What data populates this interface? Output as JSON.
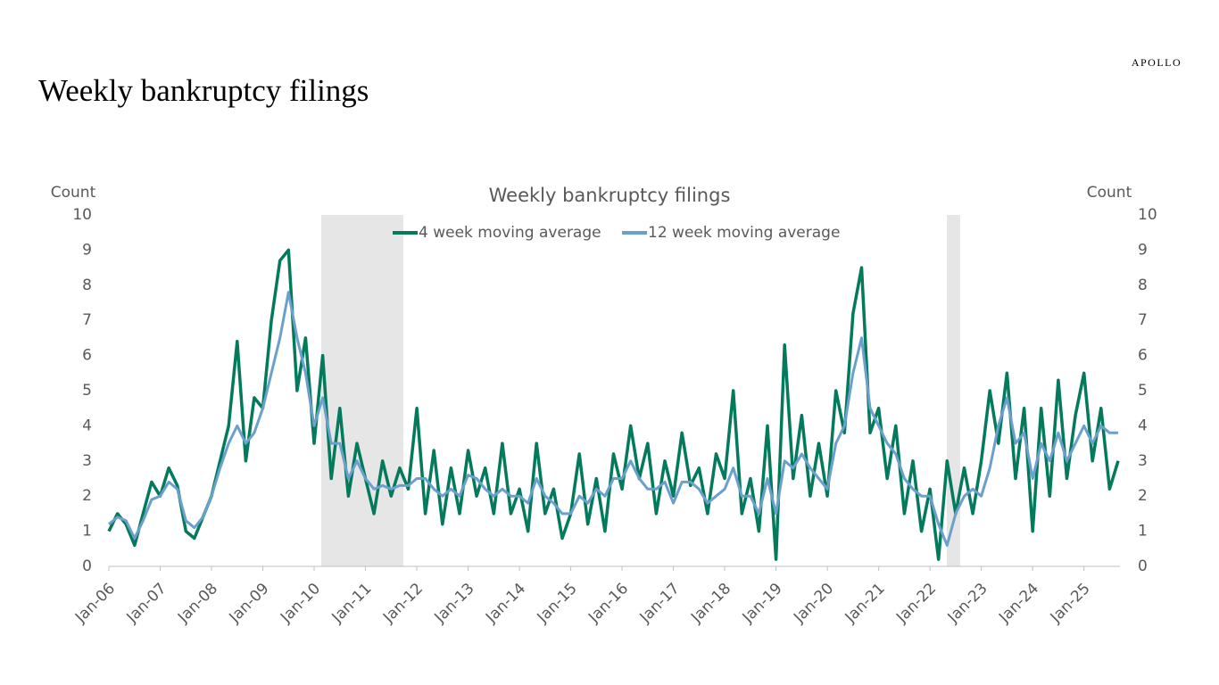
{
  "slide_title": "Weekly bankruptcy filings",
  "brand": "APOLLO",
  "chart_data": {
    "type": "line",
    "title": "Weekly bankruptcy filings",
    "y_label": "Count",
    "y2_label": "Count",
    "categories": [
      "Jan-06",
      null,
      null,
      null,
      null,
      null,
      "Jan-07",
      null,
      null,
      null,
      null,
      null,
      "Jan-08",
      null,
      null,
      null,
      null,
      null,
      "Jan-09",
      null,
      null,
      null,
      null,
      null,
      "Jan-10",
      null,
      null,
      null,
      null,
      null,
      "Jan-11",
      null,
      null,
      null,
      null,
      null,
      "Jan-12",
      null,
      null,
      null,
      null,
      null,
      "Jan-13",
      null,
      null,
      null,
      null,
      null,
      "Jan-14",
      null,
      null,
      null,
      null,
      null,
      "Jan-15",
      null,
      null,
      null,
      null,
      null,
      "Jan-16",
      null,
      null,
      null,
      null,
      null,
      "Jan-17",
      null,
      null,
      null,
      null,
      null,
      "Jan-18",
      null,
      null,
      null,
      null,
      null,
      "Jan-19",
      null,
      null,
      null,
      null,
      null,
      "Jan-20",
      null,
      null,
      null,
      null,
      null,
      "Jan-21",
      null,
      null,
      null,
      null,
      null,
      "Jan-22",
      null,
      null,
      null,
      null,
      null,
      "Jan-23",
      null,
      null,
      null,
      null,
      null,
      "Jan-24",
      null,
      null,
      null,
      null,
      null,
      "Jan-25",
      null,
      null,
      null,
      null
    ],
    "series": [
      {
        "name": "4 week moving average",
        "color": "#037a5c",
        "values": [
          1.0,
          1.5,
          1.2,
          0.6,
          1.5,
          2.4,
          2.0,
          2.8,
          2.3,
          1.0,
          0.8,
          1.4,
          2.0,
          3.0,
          4.0,
          6.4,
          3.0,
          4.8,
          4.5,
          7.0,
          8.7,
          9.0,
          5.0,
          6.5,
          3.5,
          6.0,
          2.5,
          4.5,
          2.0,
          3.5,
          2.5,
          1.5,
          3.0,
          2.0,
          2.8,
          2.2,
          4.5,
          1.5,
          3.3,
          1.2,
          2.8,
          1.5,
          3.3,
          2.0,
          2.8,
          1.5,
          3.5,
          1.5,
          2.2,
          1.0,
          3.5,
          1.5,
          2.2,
          0.8,
          1.5,
          3.2,
          1.2,
          2.5,
          1.0,
          3.2,
          2.2,
          4.0,
          2.5,
          3.5,
          1.5,
          3.0,
          2.0,
          3.8,
          2.3,
          2.8,
          1.5,
          3.2,
          2.5,
          5.0,
          1.5,
          2.5,
          1.0,
          4.0,
          0.2,
          6.3,
          2.5,
          4.3,
          2.0,
          3.5,
          2.0,
          5.0,
          3.8,
          7.2,
          8.5,
          3.8,
          4.5,
          2.5,
          4.0,
          1.5,
          3.0,
          1.0,
          2.2,
          0.2,
          3.0,
          1.5,
          2.8,
          1.5,
          3.0,
          5.0,
          3.5,
          5.5,
          2.5,
          4.5,
          1.0,
          4.5,
          2.0,
          5.3,
          2.5,
          4.3,
          5.5,
          3.0,
          4.5,
          2.2,
          3.0
        ]
      },
      {
        "name": "12 week moving average",
        "color": "#6b9fcc",
        "values": [
          1.2,
          1.4,
          1.3,
          0.8,
          1.3,
          1.9,
          2.0,
          2.4,
          2.2,
          1.3,
          1.1,
          1.4,
          2.0,
          2.8,
          3.5,
          4.0,
          3.5,
          3.8,
          4.5,
          5.5,
          6.5,
          7.8,
          6.5,
          5.5,
          4.0,
          4.8,
          3.5,
          3.5,
          2.5,
          3.0,
          2.5,
          2.2,
          2.3,
          2.2,
          2.3,
          2.3,
          2.5,
          2.5,
          2.2,
          2.0,
          2.2,
          2.0,
          2.6,
          2.5,
          2.2,
          2.0,
          2.2,
          2.0,
          2.0,
          1.8,
          2.5,
          2.0,
          1.8,
          1.5,
          1.5,
          2.0,
          1.8,
          2.2,
          2.0,
          2.5,
          2.5,
          3.0,
          2.5,
          2.2,
          2.2,
          2.4,
          1.8,
          2.4,
          2.4,
          2.2,
          1.8,
          2.0,
          2.2,
          2.8,
          2.0,
          2.0,
          1.5,
          2.5,
          1.5,
          3.0,
          2.8,
          3.2,
          2.8,
          2.5,
          2.2,
          3.5,
          4.0,
          5.5,
          6.5,
          4.5,
          4.0,
          3.5,
          3.2,
          2.5,
          2.2,
          2.0,
          2.0,
          1.2,
          0.6,
          1.5,
          2.0,
          2.2,
          2.0,
          2.8,
          4.0,
          4.8,
          3.5,
          3.8,
          2.5,
          3.5,
          3.0,
          3.8,
          3.0,
          3.5,
          4.0,
          3.5,
          4.0,
          3.8,
          3.8
        ]
      }
    ],
    "ylim": [
      0,
      10
    ],
    "yticks": [
      0,
      1,
      2,
      3,
      4,
      5,
      6,
      7,
      8,
      9,
      10
    ],
    "y2lim": [
      0,
      10
    ],
    "y2ticks": [
      0,
      1,
      2,
      3,
      4,
      5,
      6,
      7,
      8,
      9,
      10
    ],
    "grid": false
  }
}
